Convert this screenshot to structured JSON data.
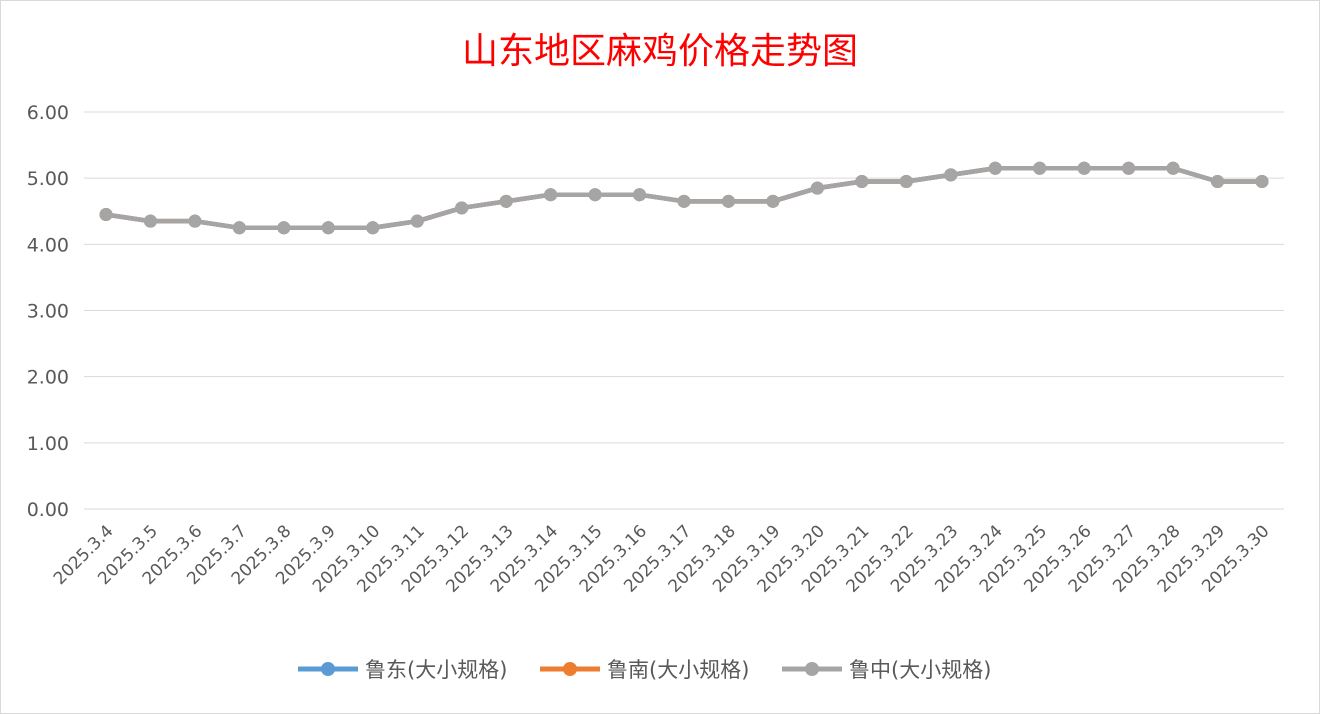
{
  "chart_data": {
    "type": "line",
    "title": "山东地区麻鸡价格走势图",
    "categories": [
      "2025.3.4",
      "2025.3.5",
      "2025.3.6",
      "2025.3.7",
      "2025.3.8",
      "2025.3.9",
      "2025.3.10",
      "2025.3.11",
      "2025.3.12",
      "2025.3.13",
      "2025.3.14",
      "2025.3.15",
      "2025.3.16",
      "2025.3.17",
      "2025.3.18",
      "2025.3.19",
      "2025.3.20",
      "2025.3.21",
      "2025.3.22",
      "2025.3.23",
      "2025.3.24",
      "2025.3.25",
      "2025.3.26",
      "2025.3.27",
      "2025.3.28",
      "2025.3.29",
      "2025.3.30"
    ],
    "y_ticks": [
      "0.00",
      "1.00",
      "2.00",
      "3.00",
      "4.00",
      "5.00",
      "6.00"
    ],
    "ylim": [
      0,
      6
    ],
    "grid": true,
    "legend_position": "bottom",
    "series": [
      {
        "name": "鲁东(大小规格)",
        "color": "#5b9bd5",
        "values": [
          4.45,
          4.35,
          4.35,
          4.25,
          4.25,
          4.25,
          4.25,
          4.35,
          4.55,
          4.65,
          4.75,
          4.75,
          4.75,
          4.65,
          4.65,
          4.65,
          4.85,
          4.95,
          4.95,
          5.05,
          5.15,
          5.15,
          5.15,
          5.15,
          5.15,
          4.95,
          4.95
        ]
      },
      {
        "name": "鲁南(大小规格)",
        "color": "#ed7d31",
        "values": [
          4.45,
          4.35,
          4.35,
          4.25,
          4.25,
          4.25,
          4.25,
          4.35,
          4.55,
          4.65,
          4.75,
          4.75,
          4.75,
          4.65,
          4.65,
          4.65,
          4.85,
          4.95,
          4.95,
          5.05,
          5.15,
          5.15,
          5.15,
          5.15,
          5.15,
          4.95,
          4.95
        ]
      },
      {
        "name": "鲁中(大小规格)",
        "color": "#a5a5a5",
        "values": [
          4.45,
          4.35,
          4.35,
          4.25,
          4.25,
          4.25,
          4.25,
          4.35,
          4.55,
          4.65,
          4.75,
          4.75,
          4.75,
          4.65,
          4.65,
          4.65,
          4.85,
          4.95,
          4.95,
          5.05,
          5.15,
          5.15,
          5.15,
          5.15,
          5.15,
          4.95,
          4.95
        ]
      }
    ]
  }
}
